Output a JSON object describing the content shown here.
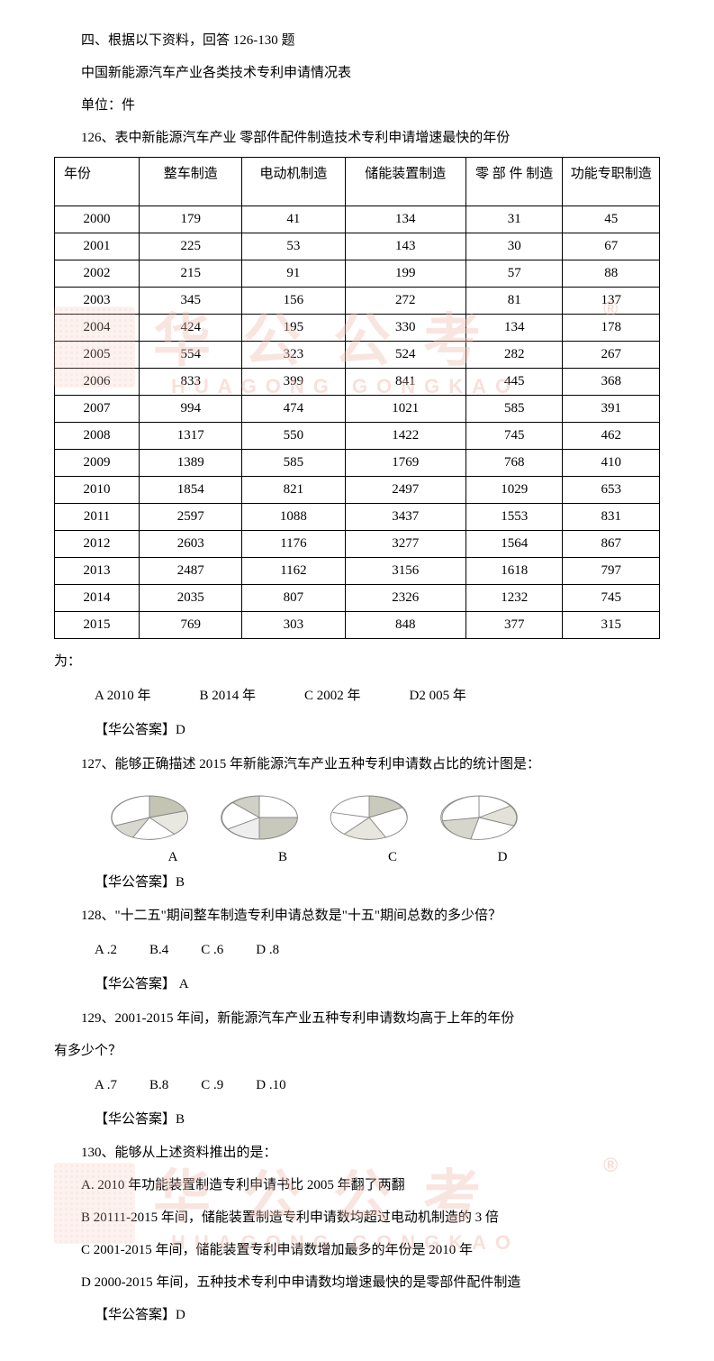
{
  "header": {
    "section_title": "四、根据以下资料，回答 126-130 题",
    "table_title": "中国新能源汽车产业各类技术专利申请情况表",
    "unit_label": "单位：件"
  },
  "q126": {
    "prompt": "126、表中新能源汽车产业 零部件配件制造技术专利申请增速最快的年份",
    "continuation": "为：",
    "opt_a": "A 2010 年",
    "opt_b": "B 2014 年",
    "opt_c": "C 2002 年",
    "opt_d": "D2 005 年",
    "answer": "【华公答案】D"
  },
  "table": {
    "columns": [
      "年份",
      "整车制造",
      "电动机制造",
      "储能装置制造",
      "零 部 件 制造",
      "功能专职制造"
    ],
    "rows": [
      [
        "2000",
        "179",
        "41",
        "134",
        "31",
        "45"
      ],
      [
        "2001",
        "225",
        "53",
        "143",
        "30",
        "67"
      ],
      [
        "2002",
        "215",
        "91",
        "199",
        "57",
        "88"
      ],
      [
        "2003",
        "345",
        "156",
        "272",
        "81",
        "137"
      ],
      [
        "2004",
        "424",
        "195",
        "330",
        "134",
        "178"
      ],
      [
        "2005",
        "554",
        "323",
        "524",
        "282",
        "267"
      ],
      [
        "2006",
        "833",
        "399",
        "841",
        "445",
        "368"
      ],
      [
        "2007",
        "994",
        "474",
        "1021",
        "585",
        "391"
      ],
      [
        "2008",
        "1317",
        "550",
        "1422",
        "745",
        "462"
      ],
      [
        "2009",
        "1389",
        "585",
        "1769",
        "768",
        "410"
      ],
      [
        "2010",
        "1854",
        "821",
        "2497",
        "1029",
        "653"
      ],
      [
        "2011",
        "2597",
        "1088",
        "3437",
        "1553",
        "831"
      ],
      [
        "2012",
        "2603",
        "1176",
        "3277",
        "1564",
        "867"
      ],
      [
        "2013",
        "2487",
        "1162",
        "3156",
        "1618",
        "797"
      ],
      [
        "2014",
        "2035",
        "807",
        "2326",
        "1232",
        "745"
      ],
      [
        "2015",
        "769",
        "303",
        "848",
        "377",
        "315"
      ]
    ],
    "col_widths": [
      "14%",
      "17%",
      "17%",
      "20%",
      "16%",
      "16%"
    ]
  },
  "q127": {
    "prompt": "127、能够正确描述 2015 年新能源汽车产业五种专利申请数占比的统计图是：",
    "label_a": "A",
    "label_b": "B",
    "label_c": "C",
    "label_d": "D",
    "answer": "【华公答案】B"
  },
  "pies": {
    "stroke": "#777",
    "fills": {
      "hatch": "#b8b8a8",
      "light": "#e8e8e0",
      "white": "#fff"
    },
    "bg": "#fff"
  },
  "q128": {
    "prompt": "128、\"十二五\"期间整车制造专利申请总数是\"十五\"期间总数的多少倍？",
    "opt_a": "A .2",
    "opt_b": "B.4",
    "opt_c": "C .6",
    "opt_d": "D .8",
    "answer": "【华公答案】 A"
  },
  "q129": {
    "prompt_line1": "129、2001-2015 年间，新能源汽车产业五种专利申请数均高于上年的年份",
    "prompt_line2": "有多少个？",
    "opt_a": "A .7",
    "opt_b": "B.8",
    "opt_c": "C .9",
    "opt_d": "D .10",
    "answer": "【华公答案】B"
  },
  "q130": {
    "prompt": "130、能够从上述资料推出的是：",
    "opt_a": "A. 2010 年功能装置制造专利申请书比 2005 年翻了两翻",
    "opt_b": "B 20111-2015 年间，储能装置制造专利申请数均超过电动机制造的 3 倍",
    "opt_c": "C 2001-2015 年间，储能装置专利申请数增加最多的年份是 2010 年",
    "opt_d": "D 2000-2015 年间，五种技术专利中申请数均增速最快的是零部件配件制造",
    "answer": "【华公答案】D"
  },
  "watermarks": {
    "text_big": "华公公考",
    "text_sub": "HUAGONG GONGKAO",
    "reg_mark": "®",
    "color_big": "#f2b6a8",
    "color_sub": "#e9a694",
    "color_seal": "#ef8f80"
  }
}
